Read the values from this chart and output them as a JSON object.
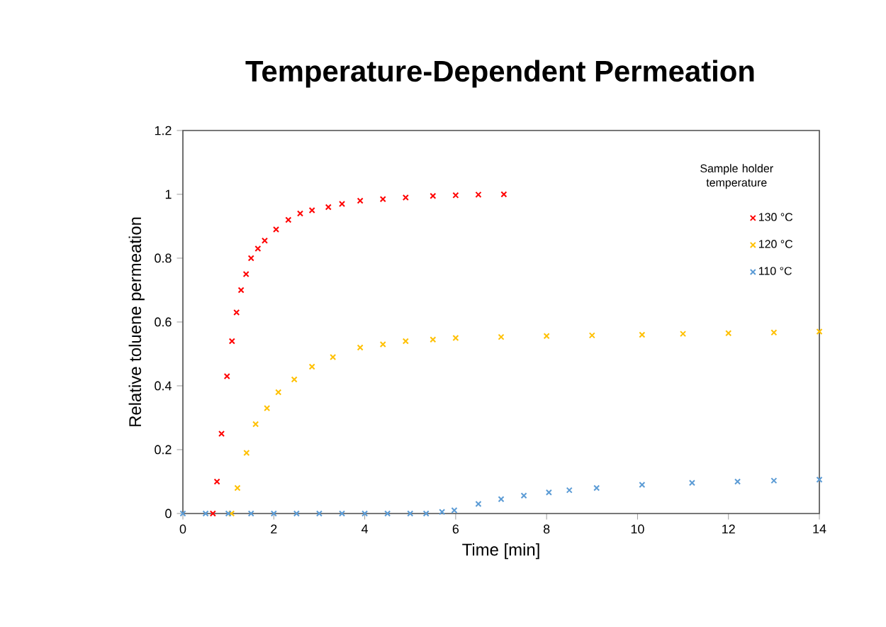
{
  "chart_data": {
    "type": "scatter",
    "title": "Temperature-Dependent Permeation",
    "xlabel": "Time [min]",
    "ylabel": "Relative toluene permeation",
    "legend_title": "Sample holder temperature",
    "legend": "top right",
    "marker": "cross",
    "grid": false,
    "xlim": [
      0,
      14
    ],
    "ylim": [
      0,
      1.2
    ],
    "xticks": [
      0,
      2,
      4,
      6,
      8,
      10,
      12,
      14
    ],
    "yticks": [
      0,
      0.2,
      0.4,
      0.6,
      0.8,
      1,
      1.2
    ],
    "series": [
      {
        "name": "130 °C",
        "color": "#ff0000",
        "x": [
          0.66,
          0.75,
          0.85,
          0.97,
          1.08,
          1.18,
          1.28,
          1.39,
          1.5,
          1.65,
          1.8,
          2.05,
          2.32,
          2.58,
          2.84,
          3.2,
          3.5,
          3.9,
          4.4,
          4.9,
          5.5,
          6.0,
          6.5,
          7.06
        ],
        "values": [
          0,
          0.1,
          0.25,
          0.43,
          0.54,
          0.63,
          0.7,
          0.75,
          0.8,
          0.83,
          0.855,
          0.89,
          0.92,
          0.94,
          0.95,
          0.96,
          0.97,
          0.98,
          0.985,
          0.99,
          0.995,
          0.997,
          0.999,
          1.0
        ]
      },
      {
        "name": "120 °C",
        "color": "#ffc000",
        "x": [
          1.07,
          1.2,
          1.4,
          1.6,
          1.85,
          2.1,
          2.45,
          2.84,
          3.3,
          3.9,
          4.4,
          4.9,
          5.5,
          6.0,
          7.0,
          8.0,
          9.0,
          10.1,
          11.0,
          12.0,
          13.0,
          14.0
        ],
        "values": [
          0,
          0.08,
          0.19,
          0.28,
          0.33,
          0.38,
          0.42,
          0.46,
          0.49,
          0.52,
          0.53,
          0.54,
          0.545,
          0.55,
          0.553,
          0.556,
          0.558,
          0.56,
          0.563,
          0.565,
          0.567,
          0.57
        ]
      },
      {
        "name": "110 °C",
        "color": "#5b9bd5",
        "x": [
          0,
          0.5,
          1,
          1.5,
          2,
          2.5,
          3,
          3.5,
          4,
          4.5,
          5,
          5.35,
          5.7,
          5.97,
          6.5,
          7.0,
          7.5,
          8.05,
          8.5,
          9.1,
          10.1,
          11.2,
          12.2,
          13.0,
          14.0
        ],
        "values": [
          0,
          0,
          0,
          0,
          0,
          0,
          0,
          0,
          0,
          0,
          0,
          0,
          0.005,
          0.01,
          0.03,
          0.045,
          0.056,
          0.066,
          0.073,
          0.08,
          0.09,
          0.096,
          0.1,
          0.103,
          0.106
        ]
      }
    ]
  }
}
